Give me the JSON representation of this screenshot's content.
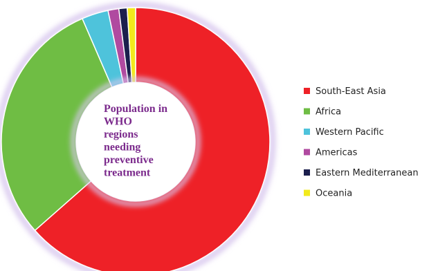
{
  "chart_data": {
    "type": "pie",
    "donut": true,
    "center_title_lines": [
      "Population in",
      "WHO",
      "regions",
      "needing",
      "preventive",
      "treatment"
    ],
    "legend_position": "right",
    "slices": [
      {
        "name": "South-East Asia",
        "percent": 63.5,
        "color": "#ee2127"
      },
      {
        "name": "Africa",
        "percent": 30.0,
        "color": "#6fbd44"
      },
      {
        "name": "Western Pacific",
        "percent": 3.2,
        "color": "#4ec3db"
      },
      {
        "name": "Americas",
        "percent": 1.3,
        "color": "#b04aa0"
      },
      {
        "name": "Eastern Mediterranean",
        "percent": 1.0,
        "color": "#1b1f4d"
      },
      {
        "name": "Oceania",
        "percent": 1.0,
        "color": "#f2ea1c"
      }
    ]
  }
}
